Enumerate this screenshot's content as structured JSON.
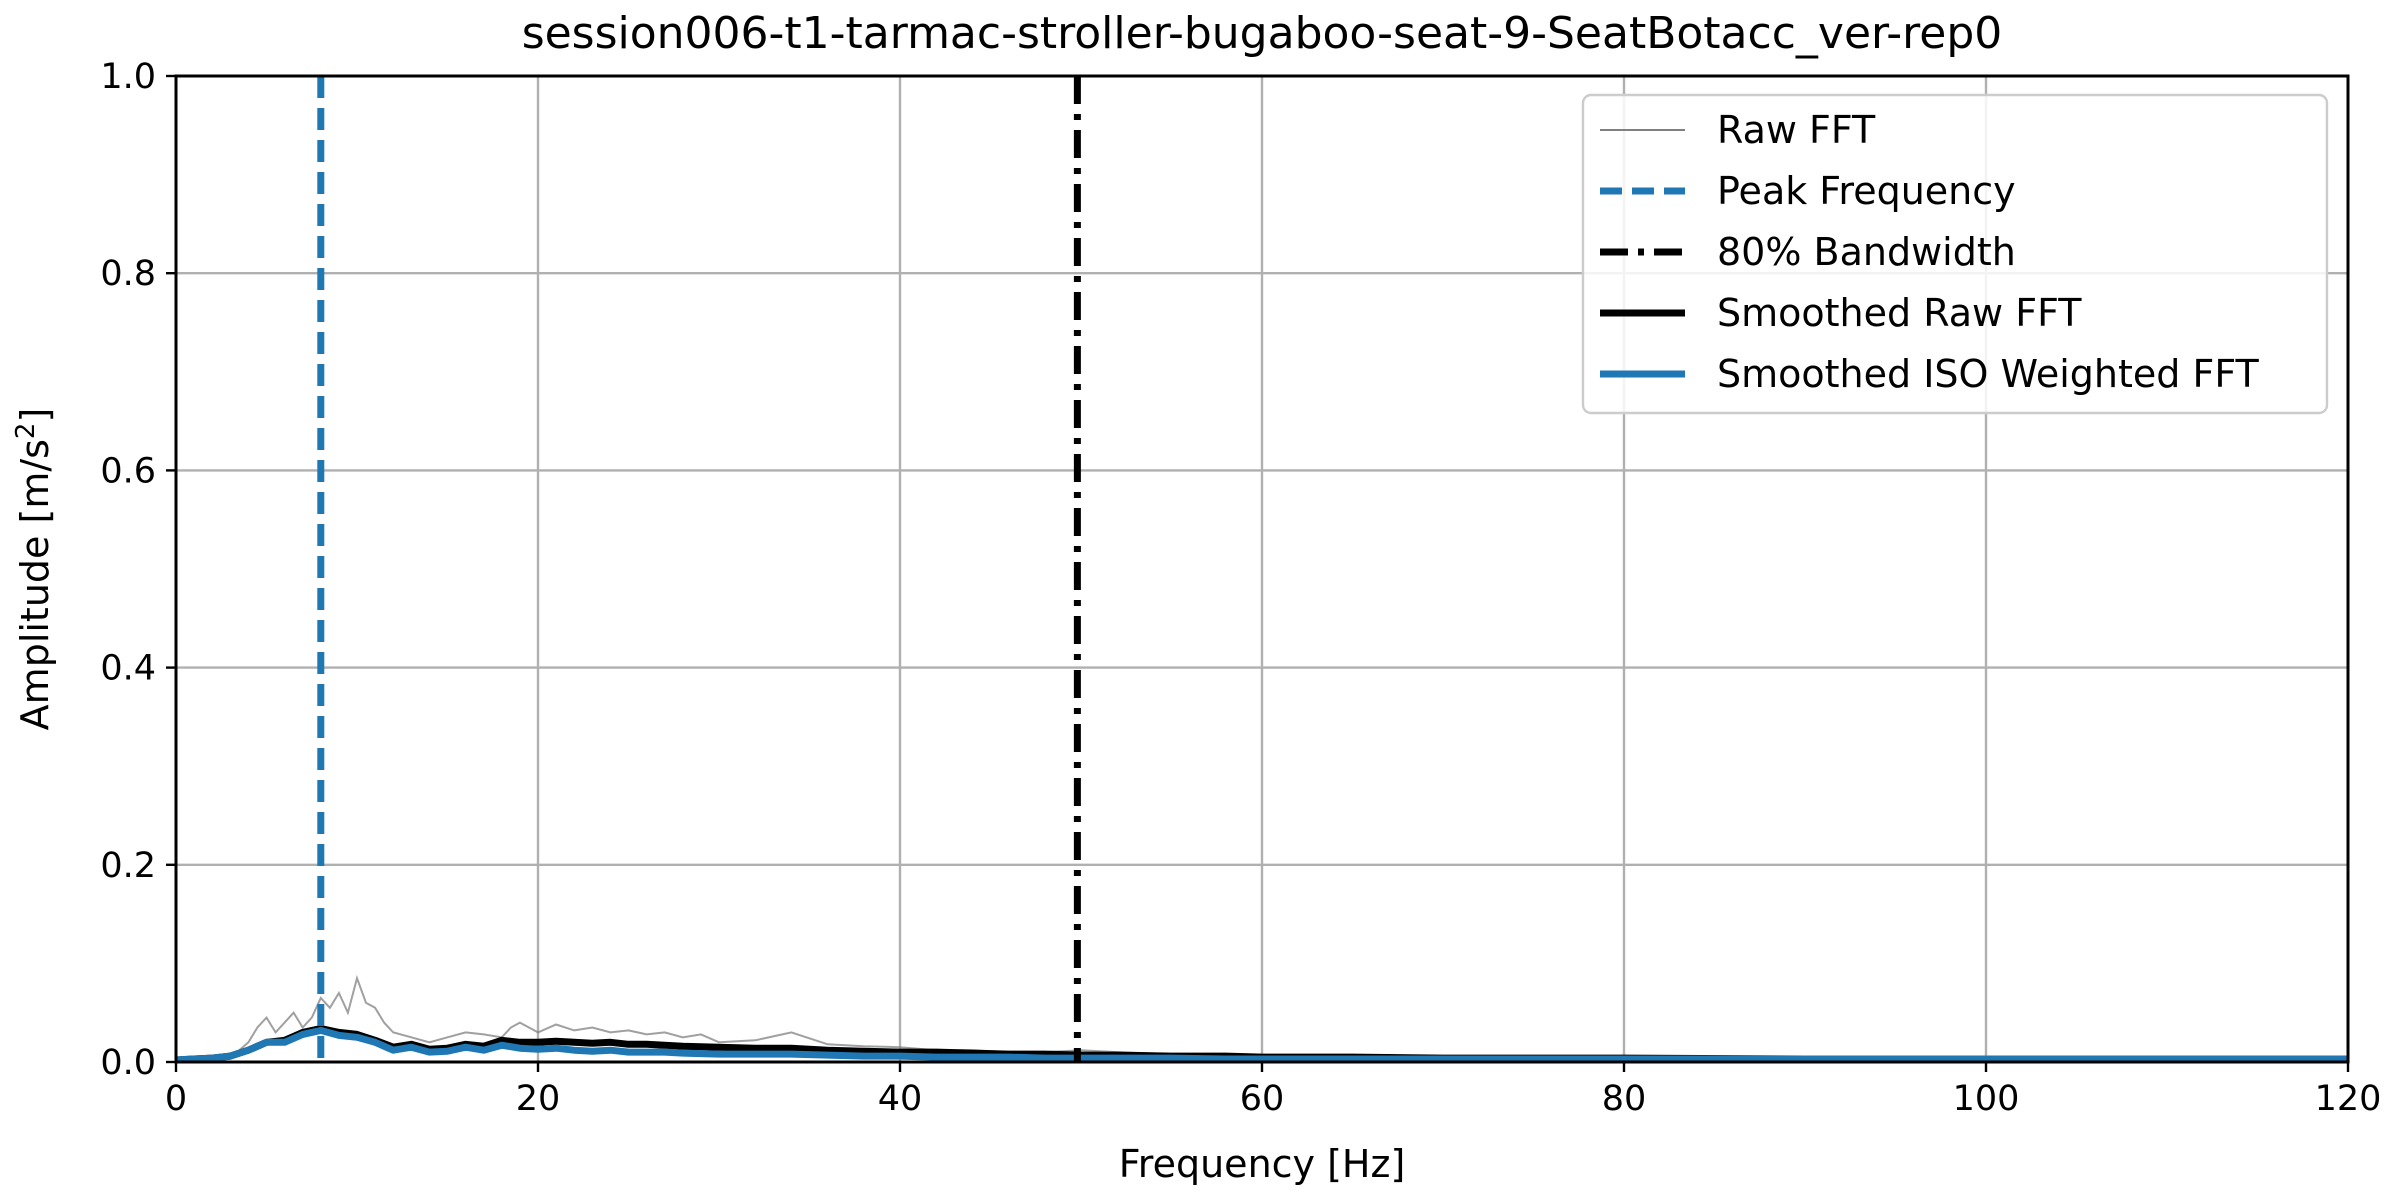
{
  "chart_data": {
    "type": "line",
    "title": "session006-t1-tarmac-stroller-bugaboo-seat-9-SeatBotacc_ver-rep0",
    "xlabel": "Frequency [Hz]",
    "ylabel_main": "Amplitude [m/s",
    "ylabel_sup": "2",
    "ylabel_close": "]",
    "xlim": [
      0,
      120
    ],
    "ylim": [
      0,
      1.0
    ],
    "grid": true,
    "legend_position": "top-right",
    "x_ticks": [
      "0",
      "20",
      "40",
      "60",
      "80",
      "100",
      "120"
    ],
    "y_ticks": [
      "0.0",
      "0.2",
      "0.4",
      "0.6",
      "0.8",
      "1.0"
    ],
    "x_tick_values": [
      0,
      20,
      40,
      60,
      80,
      100,
      120
    ],
    "y_tick_values": [
      0.0,
      0.2,
      0.4,
      0.6,
      0.8,
      1.0
    ],
    "colors": {
      "raw": "#808080",
      "peak": "#1f77b4",
      "bandwidth": "#000000",
      "smoothed_raw": "#000000",
      "smoothed_iso": "#1f77b4"
    },
    "peak_frequency": 8.0,
    "bandwidth_80": 49.8,
    "series": [
      {
        "name": "Raw FFT",
        "x": [
          0,
          1,
          2,
          3,
          3.5,
          4,
          4.5,
          5,
          5.5,
          6,
          6.5,
          7,
          7.5,
          8,
          8.5,
          9,
          9.5,
          10,
          10.5,
          11,
          11.5,
          12,
          13,
          14,
          15,
          16,
          17,
          18,
          18.5,
          19,
          20,
          21,
          22,
          23,
          24,
          25,
          26,
          27,
          28,
          29,
          30,
          32,
          34,
          36,
          38,
          40,
          42,
          44,
          46,
          48,
          50,
          52,
          55,
          58,
          60,
          65,
          70,
          80,
          90,
          100,
          110,
          120
        ],
        "y": [
          0.002,
          0.003,
          0.004,
          0.006,
          0.012,
          0.02,
          0.035,
          0.045,
          0.03,
          0.04,
          0.05,
          0.035,
          0.045,
          0.065,
          0.055,
          0.07,
          0.05,
          0.085,
          0.06,
          0.055,
          0.04,
          0.03,
          0.025,
          0.02,
          0.025,
          0.03,
          0.028,
          0.025,
          0.035,
          0.04,
          0.03,
          0.038,
          0.032,
          0.035,
          0.03,
          0.032,
          0.028,
          0.03,
          0.025,
          0.028,
          0.02,
          0.022,
          0.03,
          0.018,
          0.016,
          0.015,
          0.012,
          0.012,
          0.01,
          0.01,
          0.012,
          0.01,
          0.008,
          0.008,
          0.007,
          0.006,
          0.005,
          0.004,
          0.004,
          0.003,
          0.003,
          0.003
        ]
      },
      {
        "name": "Smoothed Raw FFT",
        "x": [
          0,
          1,
          2,
          3,
          4,
          5,
          6,
          7,
          8,
          9,
          10,
          11,
          12,
          13,
          14,
          15,
          16,
          17,
          18,
          19,
          20,
          21,
          22,
          23,
          24,
          25,
          26,
          27,
          28,
          30,
          32,
          34,
          36,
          38,
          40,
          42,
          44,
          46,
          48,
          50,
          52,
          55,
          58,
          60,
          65,
          70,
          75,
          80,
          90,
          100,
          110,
          120
        ],
        "y": [
          0.002,
          0.003,
          0.004,
          0.006,
          0.012,
          0.02,
          0.022,
          0.03,
          0.034,
          0.03,
          0.028,
          0.022,
          0.015,
          0.018,
          0.013,
          0.014,
          0.018,
          0.016,
          0.022,
          0.02,
          0.02,
          0.021,
          0.02,
          0.019,
          0.02,
          0.018,
          0.018,
          0.017,
          0.016,
          0.015,
          0.014,
          0.014,
          0.012,
          0.011,
          0.01,
          0.01,
          0.009,
          0.008,
          0.008,
          0.007,
          0.007,
          0.006,
          0.006,
          0.005,
          0.005,
          0.004,
          0.004,
          0.004,
          0.003,
          0.003,
          0.003,
          0.003
        ]
      },
      {
        "name": "Smoothed ISO Weighted FFT",
        "x": [
          0,
          1,
          2,
          3,
          4,
          5,
          6,
          7,
          8,
          9,
          10,
          11,
          12,
          13,
          14,
          15,
          16,
          17,
          18,
          19,
          20,
          21,
          22,
          23,
          24,
          25,
          26,
          27,
          28,
          30,
          32,
          34,
          36,
          38,
          40,
          42,
          44,
          46,
          48,
          50,
          52,
          55,
          58,
          60,
          65,
          70,
          75,
          80,
          90,
          100,
          110,
          120
        ],
        "y": [
          0.002,
          0.003,
          0.004,
          0.006,
          0.012,
          0.02,
          0.02,
          0.028,
          0.032,
          0.027,
          0.025,
          0.02,
          0.012,
          0.015,
          0.01,
          0.011,
          0.015,
          0.012,
          0.017,
          0.014,
          0.013,
          0.014,
          0.012,
          0.011,
          0.012,
          0.01,
          0.01,
          0.01,
          0.009,
          0.008,
          0.008,
          0.008,
          0.007,
          0.006,
          0.006,
          0.005,
          0.005,
          0.005,
          0.004,
          0.004,
          0.004,
          0.004,
          0.003,
          0.003,
          0.003,
          0.003,
          0.003,
          0.003,
          0.003,
          0.003,
          0.003,
          0.003
        ]
      }
    ],
    "legend": [
      {
        "label": "Raw FFT",
        "style": "raw"
      },
      {
        "label": "Peak Frequency",
        "style": "peak"
      },
      {
        "label": "80% Bandwidth",
        "style": "bandwidth"
      },
      {
        "label": "Smoothed Raw FFT",
        "style": "smoothed_raw"
      },
      {
        "label": "Smoothed ISO Weighted FFT",
        "style": "smoothed_iso"
      }
    ]
  }
}
